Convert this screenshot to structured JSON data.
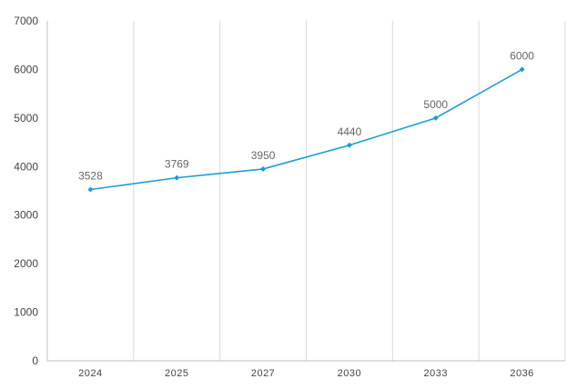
{
  "chart_data": {
    "type": "line",
    "categories": [
      "2024",
      "2025",
      "2027",
      "2030",
      "2033",
      "2036"
    ],
    "series": [
      {
        "values": [
          3528,
          3769,
          3950,
          4440,
          5000,
          6000
        ]
      }
    ],
    "data_labels": [
      "3528",
      "3769",
      "3950",
      "4440",
      "5000",
      "6000"
    ],
    "y_ticks": [
      "0",
      "1000",
      "2000",
      "3000",
      "4000",
      "5000",
      "6000",
      "7000"
    ],
    "ylim": [
      0,
      7000
    ],
    "grid": "vertical",
    "legend": "none",
    "colors": {
      "line": "#1a9ed4",
      "grid": "#d9d9d9",
      "axis": "#bfbfbf"
    }
  }
}
